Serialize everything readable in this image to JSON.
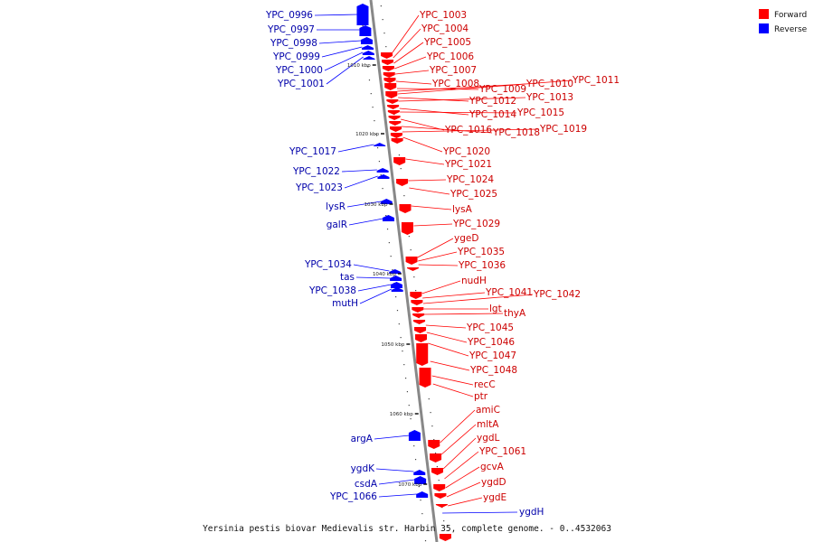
{
  "colors": {
    "forward": "#ff0000",
    "reverse": "#0000ff",
    "backbone": "#888888",
    "label_forward": "#cc0000",
    "label_reverse": "#0000aa"
  },
  "legend": [
    {
      "label": "Forward",
      "color": "#ff0000"
    },
    {
      "label": "Reverse",
      "color": "#0000ff"
    }
  ],
  "caption": "Yersinia pestis biovar Medievalis str. Harbin 35, complete genome. - 0..4532063",
  "scale_ticks": [
    "1010 kbp",
    "1020 kbp",
    "1030 kbp",
    "1040 kbp",
    "1050 kbp",
    "1060 kbp",
    "1070 kbp"
  ],
  "forward_labels": [
    "YPC_1003",
    "YPC_1004",
    "YPC_1005",
    "YPC_1006",
    "YPC_1007",
    "YPC_1008",
    "YPC_1009",
    "YPC_1010",
    "YPC_1011",
    "YPC_1012",
    "YPC_1013",
    "YPC_1014",
    "YPC_1015",
    "YPC_1016",
    "YPC_1018",
    "YPC_1019",
    "YPC_1020",
    "YPC_1021",
    "YPC_1024",
    "YPC_1025",
    "lysA",
    "YPC_1029",
    "ygeD",
    "YPC_1035",
    "YPC_1036",
    "nudH",
    "YPC_1041",
    "YPC_1042",
    "lgt",
    "thyA",
    "YPC_1045",
    "YPC_1046",
    "YPC_1047",
    "YPC_1048",
    "recC",
    "ptr",
    "amiC",
    "mltA",
    "ygdL",
    "YPC_1061",
    "gcvA",
    "ygdD",
    "ygdE"
  ],
  "reverse_labels": [
    "YPC_0996",
    "YPC_0997",
    "YPC_0998",
    "YPC_0999",
    "YPC_1000",
    "YPC_1001",
    "YPC_1017",
    "YPC_1022",
    "YPC_1023",
    "lysR",
    "galR",
    "YPC_1034",
    "tas",
    "YPC_1038",
    "mutH",
    "argA",
    "ygdK",
    "csdA",
    "YPC_1066",
    "ygdH"
  ]
}
